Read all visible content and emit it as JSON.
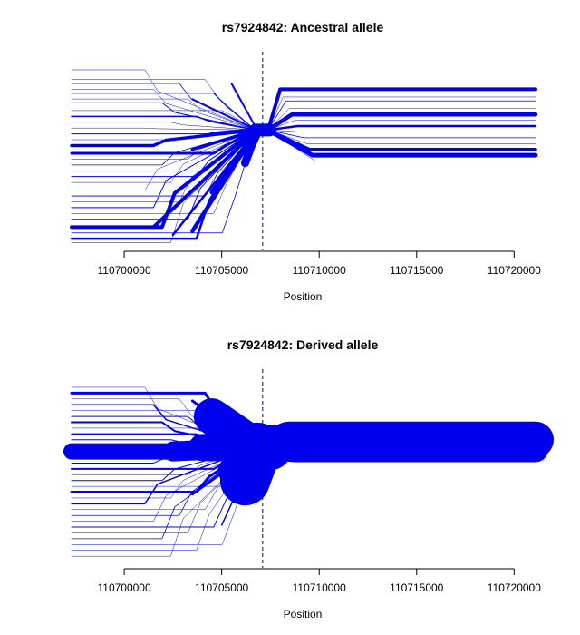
{
  "chart_data": [
    {
      "type": "line",
      "subtype": "haplotype-bifurcation",
      "title": "rs7924842: Ancestral allele",
      "xlabel": "Position",
      "ylabel": "",
      "xlim": [
        110697300,
        110721100
      ],
      "xticks": [
        110700000,
        110705000,
        110710000,
        110715000,
        110720000
      ],
      "focal_position": 110707100,
      "grid": false,
      "color": "#0000ee",
      "left_branches": [
        {
          "y": 0.93,
          "w": 0.5
        },
        {
          "y": 0.88,
          "w": 0.5
        },
        {
          "y": 0.86,
          "w": 0.8
        },
        {
          "y": 0.83,
          "w": 0.5
        },
        {
          "y": 0.81,
          "w": 1.2
        },
        {
          "y": 0.78,
          "w": 0.5
        },
        {
          "y": 0.76,
          "w": 1.0
        },
        {
          "y": 0.72,
          "w": 0.5
        },
        {
          "y": 0.69,
          "w": 1.5
        },
        {
          "y": 0.66,
          "w": 0.5
        },
        {
          "y": 0.63,
          "w": 0.5
        },
        {
          "y": 0.6,
          "w": 1.0
        },
        {
          "y": 0.57,
          "w": 0.5
        },
        {
          "y": 0.54,
          "w": 3.5
        },
        {
          "y": 0.5,
          "w": 3.0
        },
        {
          "y": 0.47,
          "w": 0.5
        },
        {
          "y": 0.44,
          "w": 0.8
        },
        {
          "y": 0.41,
          "w": 0.5
        },
        {
          "y": 0.38,
          "w": 1.0
        },
        {
          "y": 0.35,
          "w": 0.5
        },
        {
          "y": 0.31,
          "w": 0.5
        },
        {
          "y": 0.28,
          "w": 0.8
        },
        {
          "y": 0.25,
          "w": 0.5
        },
        {
          "y": 0.22,
          "w": 1.0
        },
        {
          "y": 0.19,
          "w": 0.5
        },
        {
          "y": 0.16,
          "w": 1.0
        },
        {
          "y": 0.12,
          "w": 4.0
        },
        {
          "y": 0.09,
          "w": 0.8
        },
        {
          "y": 0.06,
          "w": 2.5
        },
        {
          "y": 0.04,
          "w": 0.5
        }
      ],
      "left_joins": [
        {
          "x": 110701500,
          "y": 0.12,
          "w": 4.0
        },
        {
          "x": 110702500,
          "y": 0.08,
          "w": 2.5
        },
        {
          "x": 110703500,
          "y": 0.1,
          "w": 4.5
        },
        {
          "x": 110703500,
          "y": 0.52,
          "w": 3.5
        },
        {
          "x": 110703500,
          "y": 0.78,
          "w": 1.5
        },
        {
          "x": 110704500,
          "y": 0.3,
          "w": 5.0
        },
        {
          "x": 110704500,
          "y": 0.6,
          "w": 4.5
        },
        {
          "x": 110705500,
          "y": 0.86,
          "w": 2.0
        },
        {
          "x": 110706200,
          "y": 0.45,
          "w": 9.0
        },
        {
          "x": 110706500,
          "y": 0.55,
          "w": 12.0
        }
      ],
      "trunk": {
        "y": 0.62,
        "w": 14
      },
      "right_branches": [
        {
          "y": 0.83,
          "w": 4.0
        },
        {
          "y": 0.79,
          "w": 0.5
        },
        {
          "y": 0.77,
          "w": 0.8
        },
        {
          "y": 0.73,
          "w": 0.5
        },
        {
          "y": 0.7,
          "w": 4.5
        },
        {
          "y": 0.67,
          "w": 0.5
        },
        {
          "y": 0.64,
          "w": 2.5
        },
        {
          "y": 0.61,
          "w": 0.5
        },
        {
          "y": 0.58,
          "w": 0.8
        },
        {
          "y": 0.55,
          "w": 0.5
        },
        {
          "y": 0.52,
          "w": 3.5
        },
        {
          "y": 0.49,
          "w": 5.0
        },
        {
          "y": 0.46,
          "w": 0.5
        }
      ]
    },
    {
      "type": "line",
      "subtype": "haplotype-bifurcation",
      "title": "rs7924842: Derived allele",
      "xlabel": "Position",
      "ylabel": "",
      "xlim": [
        110697300,
        110721100
      ],
      "xticks": [
        110700000,
        110705000,
        110710000,
        110715000,
        110720000
      ],
      "focal_position": 110707100,
      "grid": false,
      "color": "#0000ee",
      "left_branches": [
        {
          "y": 0.93,
          "w": 0.5
        },
        {
          "y": 0.9,
          "w": 3.0
        },
        {
          "y": 0.87,
          "w": 0.5
        },
        {
          "y": 0.84,
          "w": 1.5
        },
        {
          "y": 0.81,
          "w": 0.5
        },
        {
          "y": 0.78,
          "w": 1.0
        },
        {
          "y": 0.75,
          "w": 2.0
        },
        {
          "y": 0.72,
          "w": 0.5
        },
        {
          "y": 0.69,
          "w": 1.5
        },
        {
          "y": 0.66,
          "w": 1.0
        },
        {
          "y": 0.63,
          "w": 0.5
        },
        {
          "y": 0.6,
          "w": 18.0
        },
        {
          "y": 0.57,
          "w": 3.0
        },
        {
          "y": 0.54,
          "w": 1.0
        },
        {
          "y": 0.51,
          "w": 2.0
        },
        {
          "y": 0.48,
          "w": 0.5
        },
        {
          "y": 0.45,
          "w": 1.0
        },
        {
          "y": 0.42,
          "w": 0.5
        },
        {
          "y": 0.39,
          "w": 3.0
        },
        {
          "y": 0.36,
          "w": 0.5
        },
        {
          "y": 0.33,
          "w": 1.5
        },
        {
          "y": 0.3,
          "w": 0.5
        },
        {
          "y": 0.27,
          "w": 0.8
        },
        {
          "y": 0.24,
          "w": 0.5
        },
        {
          "y": 0.21,
          "w": 1.0
        },
        {
          "y": 0.18,
          "w": 0.5
        },
        {
          "y": 0.15,
          "w": 0.8
        },
        {
          "y": 0.12,
          "w": 0.5
        },
        {
          "y": 0.09,
          "w": 0.5
        },
        {
          "y": 0.06,
          "w": 0.5
        }
      ],
      "left_joins": [
        {
          "x": 110702500,
          "y": 0.6,
          "w": 22.0
        },
        {
          "x": 110703500,
          "y": 0.86,
          "w": 3.0
        },
        {
          "x": 110703500,
          "y": 0.38,
          "w": 3.0
        },
        {
          "x": 110704000,
          "y": 0.62,
          "w": 30.0
        },
        {
          "x": 110704500,
          "y": 0.78,
          "w": 40.0
        },
        {
          "x": 110705000,
          "y": 0.22,
          "w": 1.5
        },
        {
          "x": 110705500,
          "y": 0.5,
          "w": 30.0
        },
        {
          "x": 110706200,
          "y": 0.45,
          "w": 55.0
        }
      ],
      "trunk": {
        "y": 0.62,
        "w": 50
      },
      "right_branches": [
        {
          "y": 0.73,
          "w": 0.5
        },
        {
          "y": 0.7,
          "w": 0.5
        },
        {
          "y": 0.68,
          "w": 30.0
        },
        {
          "y": 0.66,
          "w": 40.0
        },
        {
          "y": 0.64,
          "w": 0.8
        },
        {
          "y": 0.61,
          "w": 28.0
        },
        {
          "y": 0.58,
          "w": 0.5
        },
        {
          "y": 0.56,
          "w": 0.5
        }
      ]
    }
  ]
}
